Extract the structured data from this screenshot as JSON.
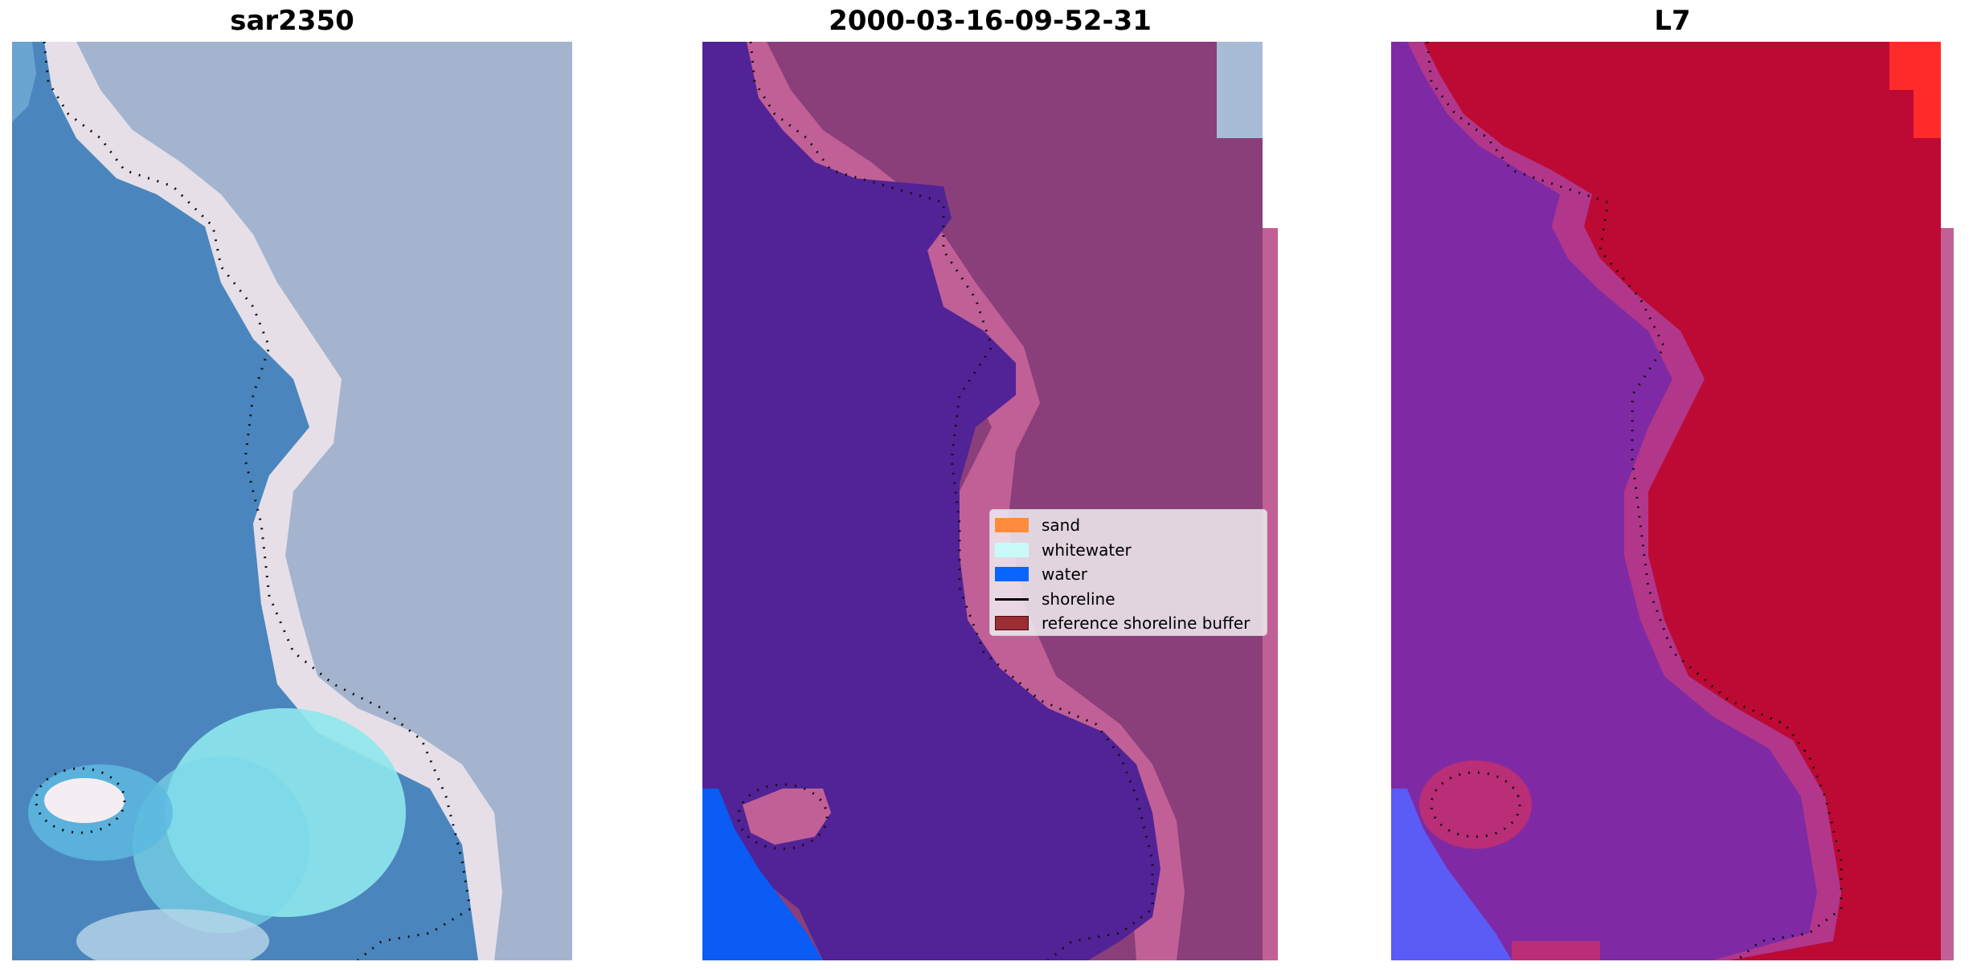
{
  "panels": [
    {
      "title": "sar2350"
    },
    {
      "title": "2000-03-16-09-52-31"
    },
    {
      "title": "L7"
    }
  ],
  "legend": {
    "items": [
      {
        "label": "sand",
        "kind": "patch",
        "color": "#ff8c3c"
      },
      {
        "label": "whitewater",
        "kind": "patch",
        "color": "#c8fafa"
      },
      {
        "label": "water",
        "kind": "patch",
        "color": "#0a64ff"
      },
      {
        "label": "shoreline",
        "kind": "line",
        "color": "#000000"
      },
      {
        "label": "reference shoreline buffer",
        "kind": "patch",
        "color": "#9b2d35"
      }
    ]
  },
  "colors": {
    "rgb_water": "#4a86bd",
    "rgb_land": "#a4b4cf",
    "rgb_sand": "#f2e6ec",
    "rgb_whitewater": "#8ee8ec",
    "class_water": "#522297",
    "class_land": "#8a3f7b",
    "class_beach": "#c16096",
    "class_water_open": "#0a5cf4",
    "index_land": "#bc0a34",
    "index_water": "#7f2aa4",
    "index_low": "#5b5bf6"
  }
}
